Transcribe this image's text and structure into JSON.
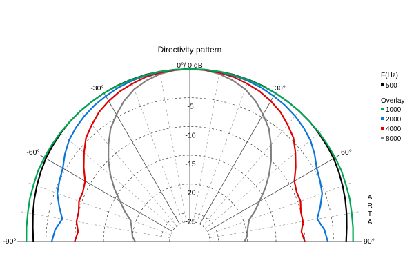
{
  "chart_data": {
    "type": "polar-line",
    "title": "Directivity pattern",
    "top_label": "0°/ 0 dB",
    "watermark": "ARTA",
    "angle_range": [
      -90,
      90
    ],
    "radial_range_db": [
      -30,
      0
    ],
    "radial_ticks": [
      -5,
      -10,
      -15,
      -20,
      -25
    ],
    "radial_tick_labels": [
      "-5",
      "-10",
      "-15",
      "-20",
      "-25"
    ],
    "angle_labels": [
      "-90°",
      "-60°",
      "-30°",
      "30°",
      "60°",
      "90°"
    ],
    "grid": true,
    "legend": {
      "title": "F(Hz)",
      "subtitle": "Overlay",
      "position": "right"
    },
    "angles": [
      -90,
      -85,
      -80,
      -75,
      -70,
      -65,
      -60,
      -55,
      -50,
      -45,
      -40,
      -35,
      -30,
      -25,
      -20,
      -15,
      -10,
      -5,
      0,
      5,
      10,
      15,
      20,
      25,
      30,
      35,
      40,
      45,
      50,
      55,
      60,
      65,
      70,
      75,
      80,
      85,
      90
    ],
    "series": [
      {
        "name": "500",
        "color": "#000000",
        "values": [
          -2.8,
          -2.6,
          -2.3,
          -2.0,
          -1.7,
          -1.4,
          -1.1,
          -0.9,
          -0.7,
          -0.5,
          -0.4,
          -0.3,
          -0.2,
          -0.1,
          -0.05,
          0,
          0,
          0,
          0,
          0,
          0,
          0,
          -0.05,
          -0.1,
          -0.2,
          -0.3,
          -0.4,
          -0.5,
          -0.7,
          -0.9,
          -1.1,
          -1.4,
          -1.7,
          -2.0,
          -2.3,
          -2.6,
          -2.8
        ]
      },
      {
        "name": "1000",
        "color": "#00a651",
        "values": [
          -1.6,
          -1.5,
          -1.4,
          -1.2,
          -1.1,
          -0.9,
          -0.8,
          -0.7,
          -0.6,
          -0.5,
          -0.4,
          -0.3,
          -0.2,
          -0.15,
          -0.1,
          -0.05,
          0,
          0,
          0,
          0,
          0,
          -0.05,
          -0.1,
          -0.15,
          -0.2,
          -0.3,
          -0.4,
          -0.5,
          -0.6,
          -0.7,
          -0.8,
          -0.9,
          -1.1,
          -1.2,
          -1.4,
          -1.5,
          -1.6
        ]
      },
      {
        "name": "2000",
        "color": "#0a74da",
        "values": [
          -6.0,
          -6.5,
          -7.5,
          -6.5,
          -5.5,
          -5.0,
          -4.5,
          -3.5,
          -2.6,
          -2.0,
          -1.5,
          -1.1,
          -0.8,
          -0.5,
          -0.3,
          -0.15,
          -0.05,
          0,
          0,
          0,
          -0.05,
          -0.15,
          -0.3,
          -0.5,
          -0.8,
          -1.1,
          -1.5,
          -2.0,
          -2.6,
          -3.5,
          -4.5,
          -5.0,
          -5.5,
          -6.5,
          -7.5,
          -6.5,
          -6.0
        ]
      },
      {
        "name": "4000",
        "color": "#e00000",
        "values": [
          -10.0,
          -10.5,
          -10.0,
          -10.0,
          -9.5,
          -9.5,
          -9.0,
          -7.5,
          -6.0,
          -4.5,
          -3.5,
          -2.5,
          -1.8,
          -1.2,
          -0.8,
          -0.4,
          -0.2,
          -0.05,
          0,
          -0.05,
          -0.2,
          -0.4,
          -0.8,
          -1.2,
          -1.8,
          -2.5,
          -3.5,
          -4.5,
          -6.0,
          -7.5,
          -9.0,
          -9.5,
          -9.5,
          -10.0,
          -10.0,
          -10.5,
          -10.0
        ]
      },
      {
        "name": "8000",
        "color": "#7f7f7f",
        "values": [
          -20.5,
          -20.0,
          -19.8,
          -19.5,
          -19.0,
          -17.5,
          -16.0,
          -14.0,
          -12.0,
          -10.0,
          -8.0,
          -6.0,
          -4.5,
          -3.0,
          -1.8,
          -1.0,
          -0.4,
          -0.1,
          0,
          -0.1,
          -0.4,
          -1.0,
          -1.8,
          -3.0,
          -4.5,
          -6.0,
          -8.0,
          -10.0,
          -12.0,
          -14.0,
          -16.0,
          -17.5,
          -19.0,
          -19.5,
          -19.8,
          -20.0,
          -20.5
        ]
      }
    ]
  }
}
